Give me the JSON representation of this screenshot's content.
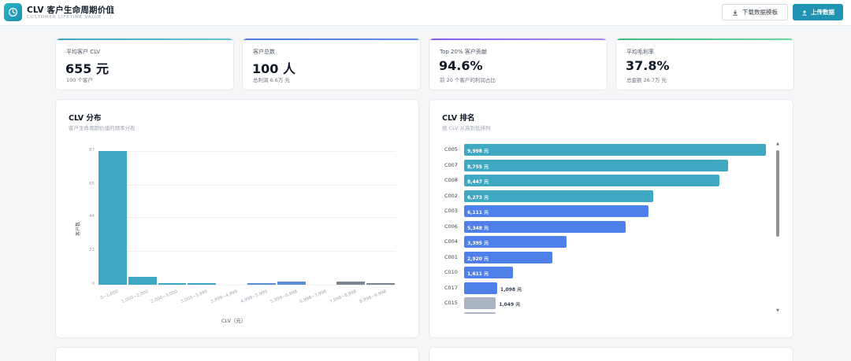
{
  "app": {
    "title": "CLV 客户生命周期价值",
    "subtitle": "CUSTOMER LIFETIME VALUE",
    "download_label": "下载数据模板",
    "upload_label": "上传数据",
    "accent": "#1f93b1"
  },
  "kpis": [
    {
      "label": "平均客户 CLV",
      "value": "655 元",
      "sub": "100 个客户",
      "color": "#3fa9c4"
    },
    {
      "label": "客户总数",
      "value": "100 人",
      "sub": "总利润 6.6万 元",
      "color": "#4b7be5"
    },
    {
      "label": "Top 20% 客户贡献",
      "value": "94.6%",
      "sub": "前 20 个客户的利润占比",
      "color": "#8b5cf6"
    },
    {
      "label": "平均毛利率",
      "value": "37.8%",
      "sub": "总金额 26.7万 元",
      "color": "#3bbf7a"
    }
  ],
  "distribution": {
    "title": "CLV 分布",
    "subtitle": "客户生命周期价值的频率分布"
  },
  "ranking": {
    "title": "CLV 排名",
    "subtitle": "按 CLV 从高到低排列"
  },
  "chart_data": [
    {
      "type": "bar",
      "title": "CLV 分布",
      "xlabel": "CLV（元）",
      "ylabel": "客户数",
      "categories": [
        "0~1,000",
        "1,000~2,000",
        "2,000~3,000",
        "3,000~3,999",
        "3,999~4,999",
        "4,999~5,999",
        "5,999~6,998",
        "6,998~7,998",
        "7,998~8,998",
        "8,998~9,998"
      ],
      "values": [
        87,
        5,
        1,
        1,
        0,
        1,
        2,
        0,
        2,
        1
      ],
      "yticks": [
        "0",
        "22",
        "44",
        "65",
        "87"
      ],
      "ylim": [
        0,
        87
      ],
      "colors": [
        "#3fa9c4",
        "#3fa9c4",
        "#3fa9c4",
        "#3fa9c4",
        "#3fa9c4",
        "#5b8fd0",
        "#5b8fd0",
        "#5b8fd0",
        "#7a8591",
        "#7a8591"
      ]
    },
    {
      "type": "bar",
      "orientation": "horizontal",
      "title": "CLV 排名",
      "categories": [
        "C005",
        "C007",
        "C008",
        "C002",
        "C003",
        "C006",
        "C004",
        "C001",
        "C010",
        "C017",
        "C015"
      ],
      "values": [
        9998,
        8755,
        8447,
        6273,
        6111,
        5348,
        3395,
        2920,
        1611,
        1098,
        1049
      ],
      "value_labels": [
        "9,998 元",
        "8,755 元",
        "8,447 元",
        "6,273 元",
        "6,111 元",
        "5,348 元",
        "3,395 元",
        "2,920 元",
        "1,611 元",
        "1,098 元",
        "1,049 元"
      ],
      "colors": [
        "#3fa9c4",
        "#3fa9c4",
        "#3fa9c4",
        "#3fa9c4",
        "#4f7fe8",
        "#4f7fe8",
        "#4f7fe8",
        "#4f7fe8",
        "#4f7fe8",
        "#4f7fe8",
        "#aab4c3"
      ],
      "xmax": 9998
    }
  ]
}
